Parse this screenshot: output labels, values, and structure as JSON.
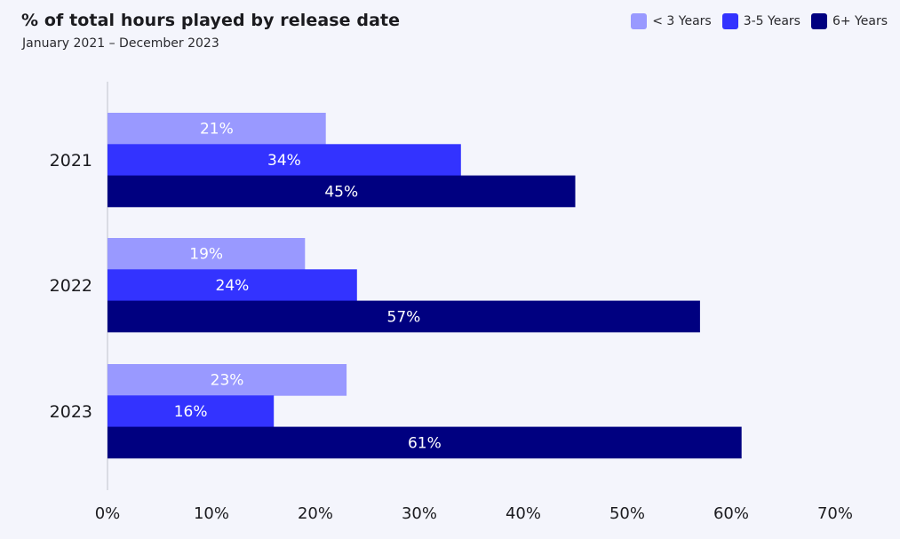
{
  "chart_data": {
    "type": "bar",
    "orientation": "horizontal",
    "title": "% of total hours played by release date",
    "subtitle": "January 2021 – December 2023",
    "categories": [
      "2021",
      "2022",
      "2023"
    ],
    "series": [
      {
        "name": "< 3 Years",
        "color": "#9999FF",
        "values": [
          21,
          19,
          23
        ],
        "labels": [
          "21%",
          "19%",
          "23%"
        ]
      },
      {
        "name": "3-5 Years",
        "color": "#3333FF",
        "values": [
          34,
          24,
          16
        ],
        "labels": [
          "34%",
          "24%",
          "16%"
        ]
      },
      {
        "name": "6+ Years",
        "color": "#000080",
        "values": [
          45,
          57,
          61
        ],
        "labels": [
          "45%",
          "57%",
          "61%"
        ]
      }
    ],
    "xlim": [
      0,
      70
    ],
    "xticks": [
      0,
      10,
      20,
      30,
      40,
      50,
      60,
      70
    ],
    "xtick_labels": [
      "0%",
      "10%",
      "20%",
      "30%",
      "40%",
      "50%",
      "60%",
      "70%"
    ],
    "xlabel": "",
    "ylabel": "",
    "grid": false,
    "legend_position": "top-right"
  }
}
